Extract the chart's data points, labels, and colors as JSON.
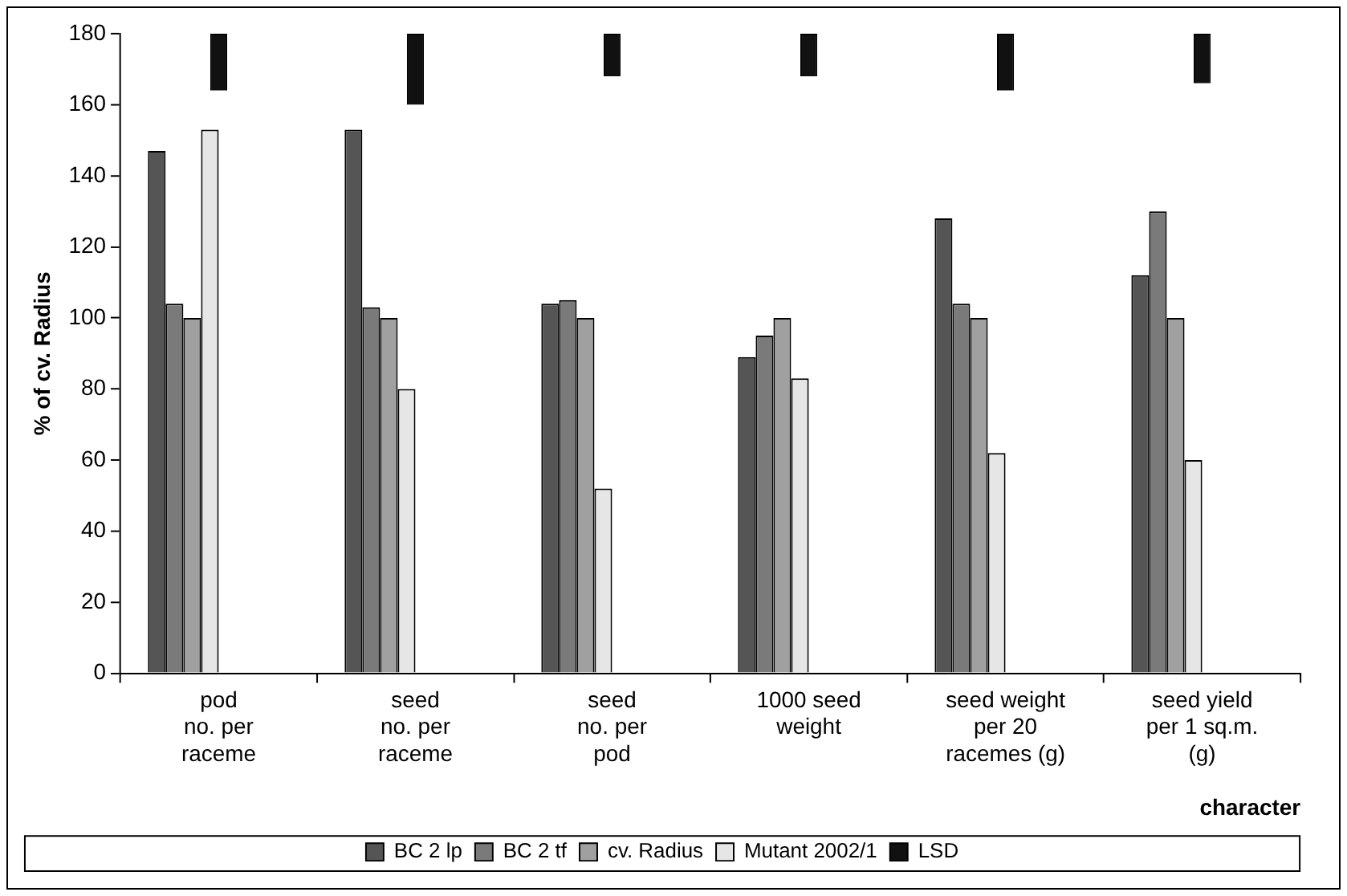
{
  "chart_data": {
    "type": "bar",
    "ylabel": "% of cv. Radius",
    "xlabel": "character",
    "categories": [
      "pod\nno. per\nraceme",
      "seed\nno. per\nraceme",
      "seed\nno. per\npod",
      "1000 seed\nweight",
      "seed weight\nper 20\nracemes (g)",
      "seed yield\nper 1 sq.m.\n(g)"
    ],
    "series": [
      {
        "name": "BC 2 lp",
        "color": "#555555",
        "values": [
          147,
          153,
          104,
          89,
          128,
          112
        ]
      },
      {
        "name": "BC 2 tf",
        "color": "#7a7a7a",
        "values": [
          104,
          103,
          105,
          95,
          104,
          130
        ]
      },
      {
        "name": "cv. Radius",
        "color": "#a0a0a0",
        "values": [
          100,
          100,
          100,
          100,
          100,
          100
        ]
      },
      {
        "name": "Mutant 2002/1",
        "color": "#e6e6e6",
        "values": [
          153,
          80,
          52,
          83,
          62,
          60
        ]
      },
      {
        "name": "LSD",
        "color": "#111111",
        "values": [
          16,
          20,
          12,
          12,
          16,
          14
        ],
        "base": [
          164,
          160,
          168,
          168,
          164,
          166
        ]
      }
    ],
    "ylim": [
      0,
      180
    ],
    "yticks": [
      0,
      20,
      40,
      60,
      80,
      100,
      120,
      140,
      160,
      180
    ],
    "grid": false,
    "legend": "bottom"
  }
}
